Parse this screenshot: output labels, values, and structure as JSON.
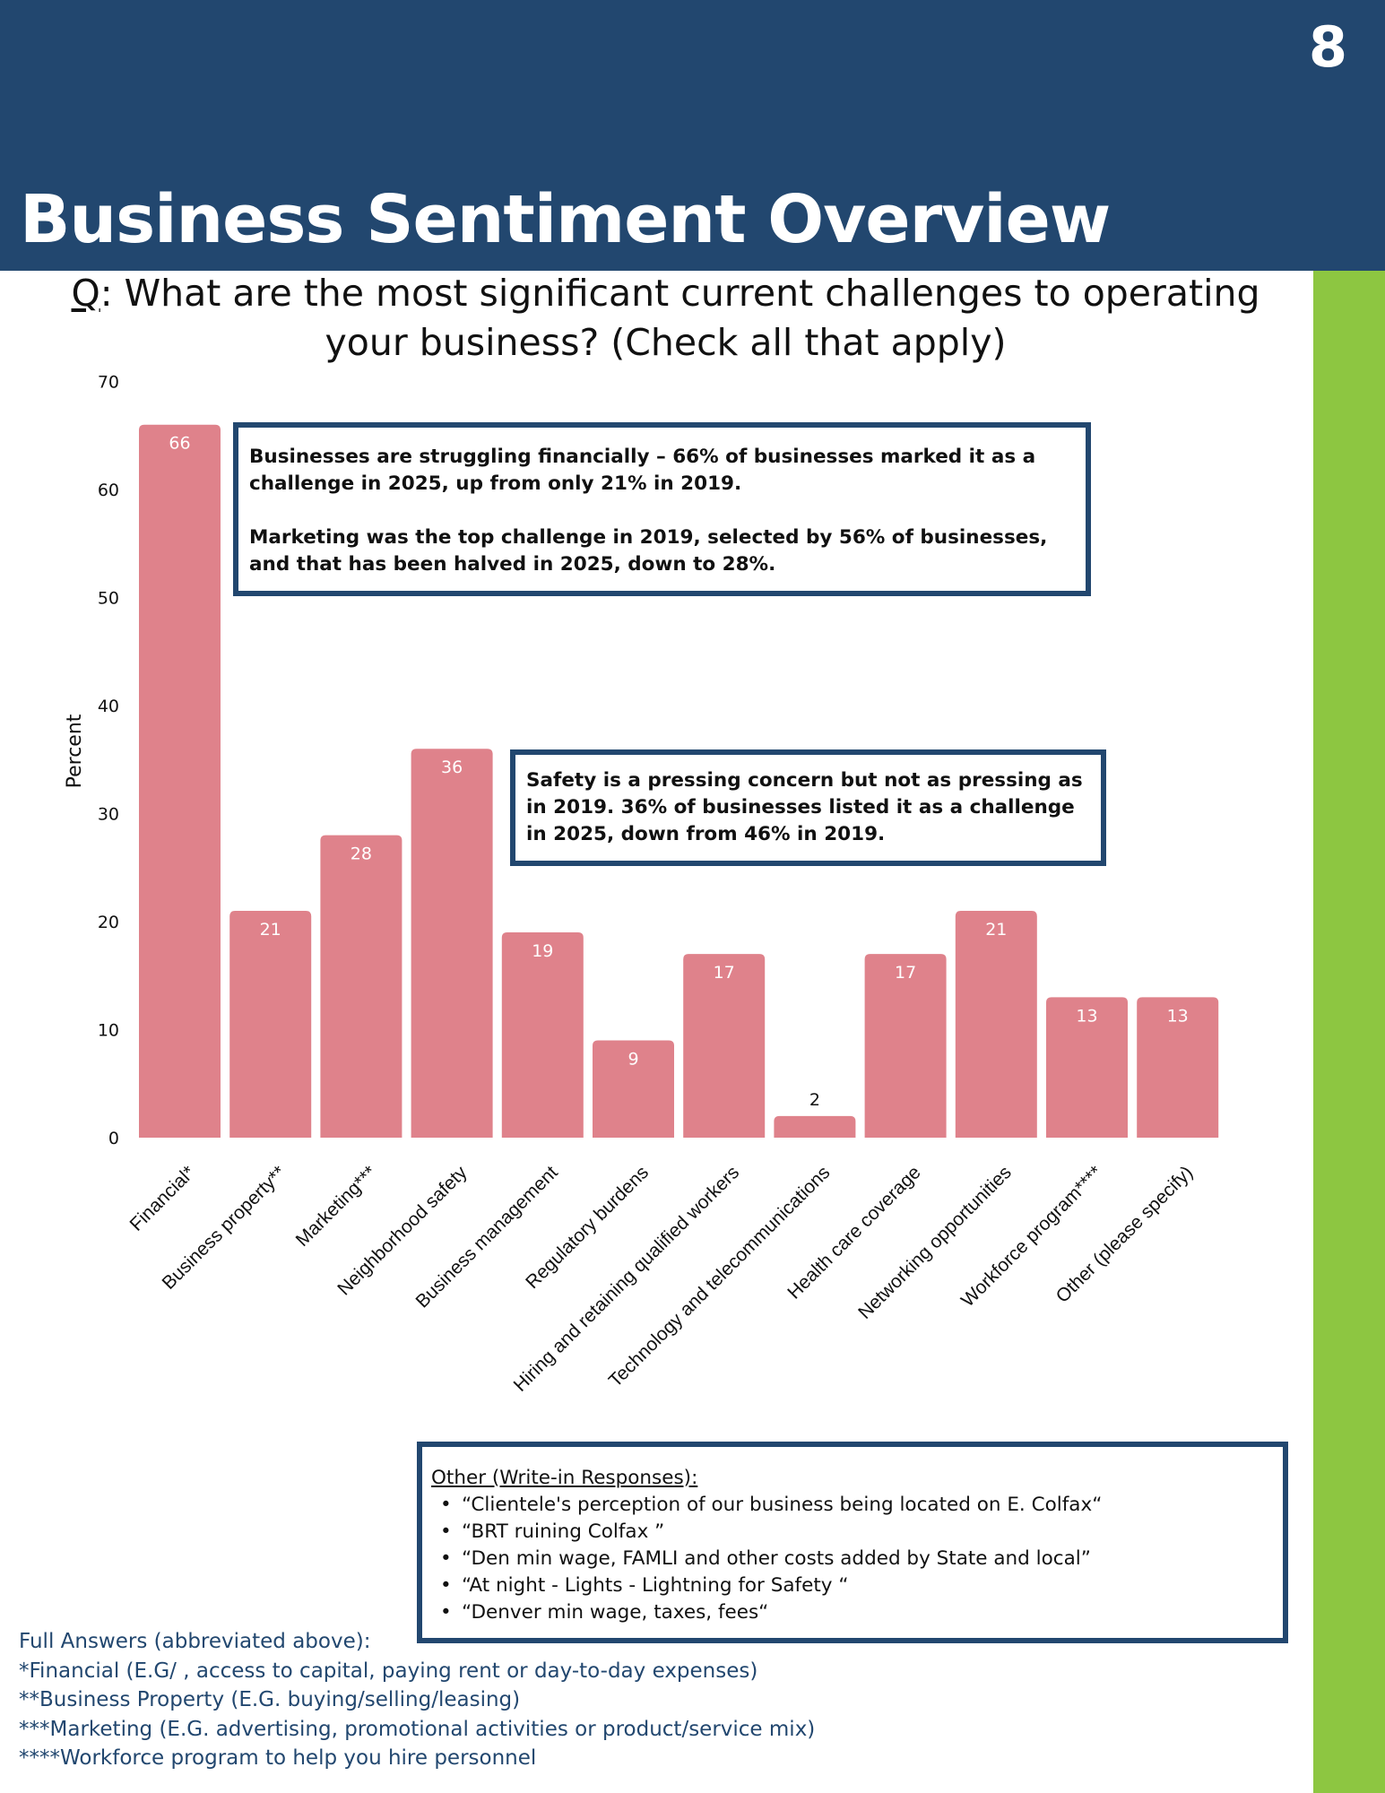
{
  "header": {
    "page_number": "8",
    "title": "Business Sentiment Overview"
  },
  "question": {
    "prefix": "Q",
    "text": ": What are the most significant current challenges to operating your business? (Check all that apply)"
  },
  "colors": {
    "header_bg": "#22476F",
    "accent_green": "#8DC641",
    "bar": "#DF828B",
    "box_border": "#22476F",
    "footnote_text": "#22476F"
  },
  "chart_data": {
    "type": "bar",
    "title": "",
    "xlabel": "",
    "ylabel": "Percent",
    "ylim": [
      0,
      70
    ],
    "yticks": [
      0,
      10,
      20,
      30,
      40,
      50,
      60,
      70
    ],
    "grid": false,
    "legend": "none",
    "categories": [
      "Financial*",
      "Business property**",
      "Marketing***",
      "Neighborhood safety",
      "Business management",
      "Regulatory burdens",
      "Hiring and retaining qualified workers",
      "Technology and telecommunications",
      "Health care coverage",
      "Networking opportunities",
      "Workforce program****",
      "Other (please specify)"
    ],
    "values": [
      66,
      21,
      28,
      36,
      19,
      9,
      17,
      2,
      17,
      21,
      13,
      13
    ]
  },
  "annotations": {
    "box1": {
      "para1": "Businesses are struggling financially – 66% of businesses marked it as a challenge in 2025, up from only 21% in 2019.",
      "para2": "Marketing was the top challenge in 2019, selected by 56% of businesses, and that has been halved in 2025, down to 28%."
    },
    "box2": {
      "text": "Safety is a pressing concern but not as pressing as in 2019. 36% of businesses listed it as a challenge in 2025, down from 46% in 2019."
    }
  },
  "other_responses": {
    "title": "Other (Write-in Responses):",
    "bullet": "•",
    "items": [
      "“Clientele's perception of our business being located on E. Colfax“",
      "“BRT ruining Colfax ”",
      "“Den min wage, FAMLI and other costs added by State and local”",
      "“At night - Lights - Lightning for Safety “",
      "“Denver min wage, taxes, fees“"
    ]
  },
  "footnotes": {
    "heading": "Full Answers (abbreviated above):",
    "items": [
      "*Financial (E.G/ , access to capital, paying rent or day-to-day expenses)",
      "**Business Property (E.G. buying/selling/leasing)",
      "***Marketing (E.G. advertising, promotional activities or product/service mix)",
      "****Workforce program to help you hire personnel"
    ]
  }
}
